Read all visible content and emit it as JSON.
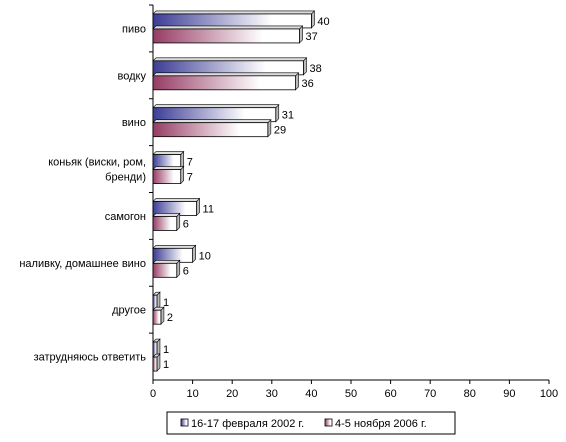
{
  "chart_data": {
    "type": "bar",
    "orientation": "horizontal",
    "categories": [
      [
        "пиво"
      ],
      [
        "водку"
      ],
      [
        "вино"
      ],
      [
        "коньяк (виски, ром,",
        "бренди)"
      ],
      [
        "самогон"
      ],
      [
        "наливку, домашнее вино"
      ],
      [
        "другое"
      ],
      [
        "затрудняюсь ответить"
      ]
    ],
    "series": [
      {
        "name": "16-17 февраля 2002 г.",
        "values": [
          40,
          38,
          31,
          7,
          11,
          10,
          1,
          1
        ],
        "color": "#3c3c96"
      },
      {
        "name": "4-5 ноября 2006 г.",
        "values": [
          37,
          36,
          29,
          7,
          6,
          6,
          2,
          1
        ],
        "color": "#963c64"
      }
    ],
    "xlim": [
      0,
      100
    ],
    "xticks": [
      0,
      10,
      20,
      30,
      40,
      50,
      60,
      70,
      80,
      90,
      100
    ],
    "legend_position": "bottom",
    "grid": false
  }
}
